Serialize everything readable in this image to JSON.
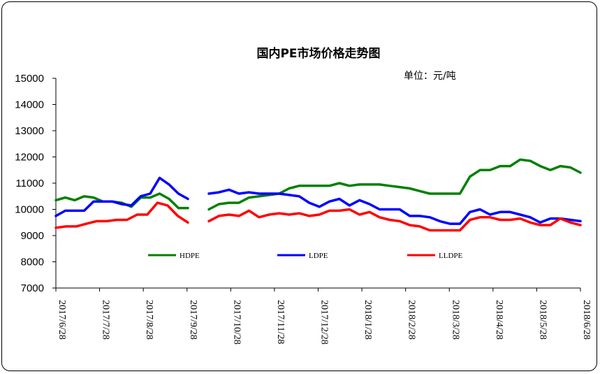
{
  "chart_data": {
    "type": "line",
    "title": "国内PE市场价格走势图",
    "unit_label": "单位：元/吨",
    "ylim": [
      7000,
      15000
    ],
    "yticks": [
      7000,
      8000,
      9000,
      10000,
      11000,
      12000,
      13000,
      14000,
      15000
    ],
    "x_tick_labels": [
      "2017/6/28",
      "2017/7/28",
      "2017/8/28",
      "2017/9/28",
      "2017/10/28",
      "2017/11/28",
      "2017/12/28",
      "2018/1/28",
      "2018/2/28",
      "2018/3/28",
      "2018/4/28",
      "2018/5/28",
      "2018/6/28"
    ],
    "legend_position": "bottom-inside",
    "grid": false,
    "series": [
      {
        "name": "HDPE",
        "color": "#008000",
        "segments": [
          [
            10350,
            10450,
            10350,
            10500,
            10450,
            10300,
            10300,
            10250,
            10100,
            10450,
            10450,
            10600,
            10400,
            10050,
            10050
          ],
          [
            10000,
            10200,
            10250,
            10250,
            10450,
            10500,
            10550,
            10600,
            10800,
            10900,
            10900,
            10900,
            10900,
            11000,
            10900,
            10950,
            10950,
            10950,
            10900,
            10850,
            10800,
            10700,
            10600,
            10600,
            10600,
            10600,
            11250,
            11500,
            11500,
            11650,
            11650,
            11900,
            11850,
            11650,
            11500,
            11650,
            11600,
            11400
          ]
        ]
      },
      {
        "name": "LDPE",
        "color": "#0000FF",
        "segments": [
          [
            9750,
            9950,
            9950,
            9950,
            10300,
            10300,
            10300,
            10200,
            10150,
            10500,
            10600,
            11200,
            10950,
            10600,
            10400
          ],
          [
            10600,
            10650,
            10750,
            10600,
            10650,
            10600,
            10600,
            10600,
            10550,
            10500,
            10250,
            10100,
            10300,
            10400,
            10150,
            10350,
            10200,
            10000,
            10000,
            10000,
            9750,
            9750,
            9700,
            9550,
            9450,
            9450,
            9900,
            10000,
            9800,
            9900,
            9900,
            9800,
            9700,
            9500,
            9650,
            9650,
            9600,
            9550
          ]
        ]
      },
      {
        "name": "LLDPE",
        "color": "#FF0000",
        "segments": [
          [
            9300,
            9350,
            9350,
            9450,
            9550,
            9550,
            9600,
            9600,
            9800,
            9800,
            10250,
            10150,
            9750,
            9500
          ],
          [
            9550,
            9750,
            9800,
            9750,
            9950,
            9700,
            9800,
            9850,
            9800,
            9850,
            9750,
            9800,
            9950,
            9950,
            10000,
            9800,
            9900,
            9700,
            9600,
            9550,
            9400,
            9350,
            9200,
            9200,
            9200,
            9200,
            9600,
            9700,
            9700,
            9600,
            9600,
            9650,
            9500,
            9400,
            9400,
            9650,
            9500,
            9400
          ]
        ]
      }
    ]
  }
}
